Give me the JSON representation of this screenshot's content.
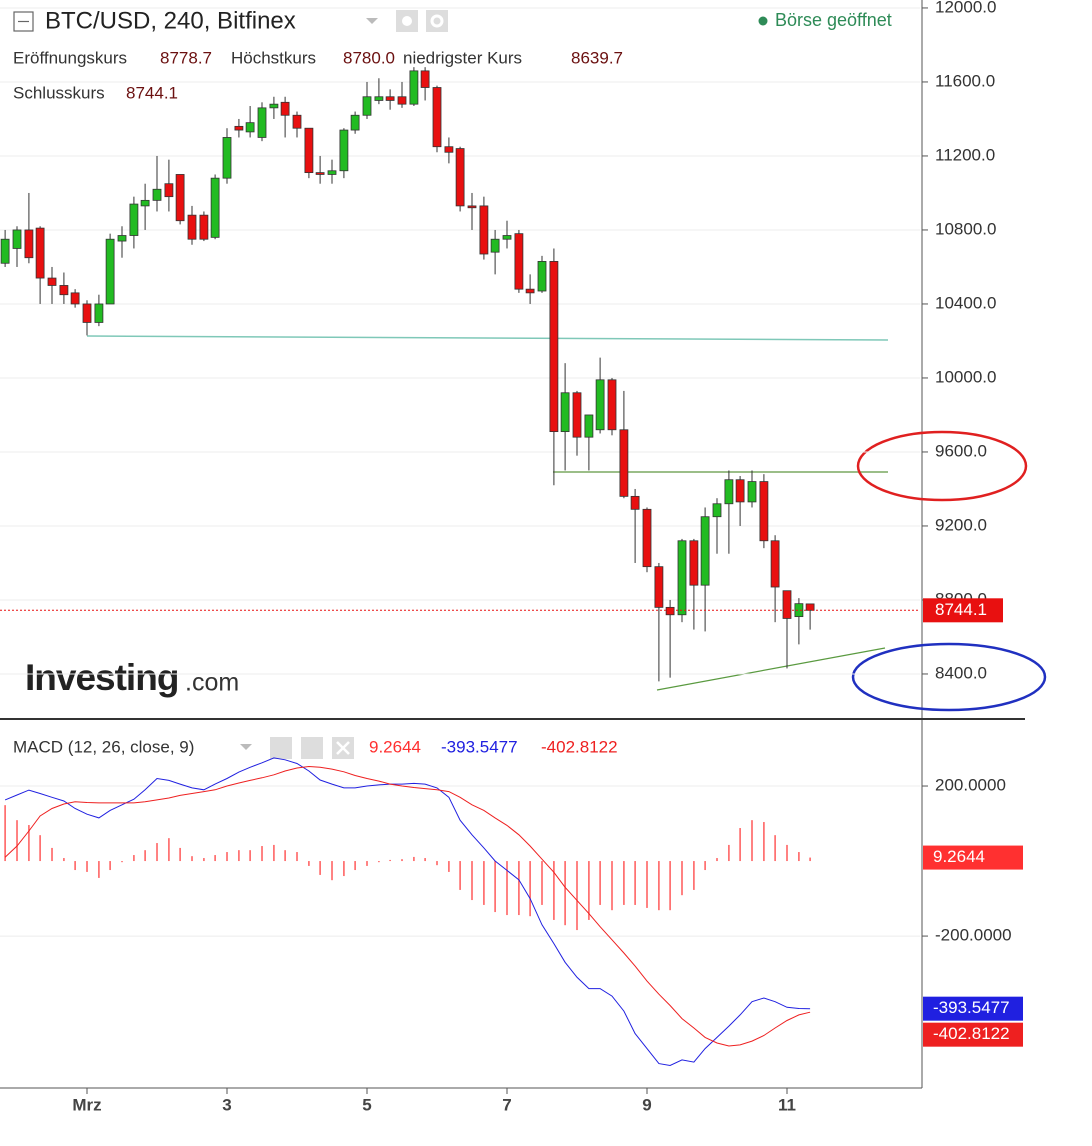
{
  "chart_data": [
    {
      "type": "candlestick",
      "title": "BTC/USD, 240, Bitfinex",
      "status": "Börse geöffnet",
      "ohlc": [
        {
          "label": "Eröffnungskurs",
          "value_label": "8778.7"
        },
        {
          "label": "Höchstkurs",
          "value_label": "8780.0"
        },
        {
          "label": "niedrigster Kurs",
          "value_label": "8639.7"
        },
        {
          "label": "Schlusskurs",
          "value_label": "8744.1"
        }
      ],
      "watermark": "Investing",
      "watermark_suffix": ".com",
      "up_color": "#22bb22",
      "down_color": "#e81010",
      "grid": true,
      "x": [
        -0.17,
        0.0,
        0.17,
        0.33,
        0.5,
        0.67,
        0.83,
        1.0,
        1.17,
        1.33,
        1.5,
        1.67,
        1.83,
        2.0,
        2.17,
        2.33,
        2.5,
        2.67,
        2.83,
        3.0,
        3.17,
        3.33,
        3.5,
        3.67,
        3.83,
        4.0,
        4.17,
        4.33,
        4.5,
        4.67,
        4.83,
        5.0,
        5.17,
        5.33,
        5.5,
        5.67,
        5.83,
        6.0,
        6.17,
        6.33,
        6.5,
        6.67,
        6.83,
        7.0,
        7.17,
        7.33,
        7.5,
        7.67,
        7.83,
        8.0,
        8.17,
        8.33,
        8.5,
        8.67,
        8.83,
        9.0,
        9.17,
        9.33,
        9.5,
        9.67,
        9.83,
        10.0,
        10.17,
        10.33,
        10.5,
        10.67,
        10.83,
        11.0,
        11.17,
        11.33
      ],
      "open": [
        10620,
        10700,
        10800,
        10810,
        10540,
        10500,
        10460,
        10400,
        10300,
        10400,
        10740,
        10770,
        10930,
        10960,
        11050,
        11100,
        10880,
        10880,
        10760,
        11080,
        11360,
        11330,
        11300,
        11460,
        11490,
        11420,
        11350,
        11110,
        11100,
        11120,
        11340,
        11420,
        11500,
        11520,
        11520,
        11480,
        11660,
        11570,
        11250,
        11240,
        10930,
        10930,
        10680,
        10750,
        10780,
        10480,
        10470,
        10630,
        9710,
        9920,
        9680,
        9720,
        9990,
        9720,
        9360,
        9290,
        8980,
        8760,
        8720,
        9120,
        8880,
        9250,
        9320,
        9450,
        9330,
        9440,
        9120,
        8850,
        8710,
        8778.7
      ],
      "high": [
        10800,
        10820,
        11000,
        10820,
        10600,
        10570,
        10480,
        10420,
        10450,
        10780,
        10820,
        10980,
        11050,
        11200,
        11180,
        11100,
        10930,
        10900,
        11100,
        11350,
        11400,
        11470,
        11490,
        11520,
        11520,
        11440,
        11350,
        11200,
        11180,
        11350,
        11440,
        11600,
        11620,
        11560,
        11600,
        11680,
        11680,
        11580,
        11300,
        11250,
        11000,
        10980,
        10800,
        10850,
        10800,
        10560,
        10660,
        10700,
        10080,
        9930,
        9800,
        10110,
        10000,
        9930,
        9400,
        9300,
        9000,
        8800,
        9130,
        9130,
        9300,
        9350,
        9500,
        9470,
        9500,
        9480,
        9150,
        8850,
        8810,
        8780
      ],
      "low": [
        10600,
        10600,
        10620,
        10400,
        10400,
        10400,
        10380,
        10230,
        10280,
        10400,
        10650,
        10700,
        10800,
        10900,
        10900,
        10830,
        10720,
        10740,
        10750,
        11050,
        11300,
        11300,
        11280,
        11400,
        11300,
        11300,
        11080,
        11050,
        11050,
        11080,
        11320,
        11400,
        11480,
        11450,
        11460,
        11470,
        11500,
        11220,
        11160,
        10900,
        10800,
        10640,
        10560,
        10700,
        10460,
        10400,
        10460,
        9420,
        9500,
        9580,
        9500,
        9700,
        9690,
        9350,
        9000,
        8950,
        8360,
        8380,
        8680,
        8640,
        8630,
        9050,
        9050,
        9200,
        9300,
        9080,
        8680,
        8430,
        8560,
        8639.7
      ],
      "close": [
        10750,
        10800,
        10650,
        10540,
        10500,
        10450,
        10400,
        10300,
        10400,
        10750,
        10770,
        10940,
        10960,
        11020,
        10980,
        10850,
        10750,
        10750,
        11080,
        11300,
        11340,
        11380,
        11460,
        11480,
        11420,
        11350,
        11110,
        11100,
        11120,
        11340,
        11420,
        11520,
        11520,
        11500,
        11480,
        11660,
        11570,
        11250,
        11220,
        10930,
        10920,
        10670,
        10750,
        10770,
        10480,
        10460,
        10630,
        9710,
        9920,
        9680,
        9800,
        9990,
        9720,
        9360,
        9290,
        8980,
        8760,
        8720,
        9120,
        8880,
        9250,
        9320,
        9450,
        9330,
        9440,
        9120,
        8870,
        8700,
        8780,
        8744.1
      ],
      "xlim": [
        -0.243,
        12.9
      ],
      "xticks": [
        {
          "value": 1,
          "label": "Mrz"
        },
        3,
        5,
        7,
        9,
        11
      ],
      "ylim": [
        8162,
        12043
      ],
      "yticks": [
        {
          "value": 8400,
          "label": "8400.0"
        },
        {
          "value": 8800,
          "label": "8800.0"
        },
        {
          "value": 9200,
          "label": "9200.0"
        },
        {
          "value": 9600,
          "label": "9600.0"
        },
        {
          "value": 10000,
          "label": "10000.0"
        },
        {
          "value": 10400,
          "label": "10400.0"
        },
        {
          "value": 10800,
          "label": "10800.0"
        },
        {
          "value": 11200,
          "label": "11200.0"
        },
        {
          "value": 11600,
          "label": "11600.0"
        },
        {
          "value": 12000,
          "label": "12000.0"
        }
      ]
    },
    {
      "type": "macd",
      "title": "MACD (12, 26, close, 9)",
      "grid": true,
      "ylim": [
        -605,
        376
      ],
      "yticks": [
        {
          "value": -200,
          "label": "-200.0000"
        },
        {
          "value": 200,
          "label": "200.0000"
        }
      ],
      "series": [
        {
          "style": "histogram",
          "color": "#ff3030",
          "values": [
            149,
            109,
            96,
            69,
            35,
            8,
            -24,
            -29,
            -45,
            -24,
            -3,
            16,
            29,
            48,
            61,
            35,
            13,
            8,
            16,
            24,
            29,
            29,
            40,
            43,
            29,
            24,
            -13,
            -37,
            -51,
            -40,
            -24,
            -13,
            -3,
            3,
            5,
            11,
            8,
            -11,
            -29,
            -77,
            -104,
            -117,
            -136,
            -144,
            -144,
            -147,
            -117,
            -157,
            -171,
            -184,
            -157,
            -117,
            -131,
            -117,
            -117,
            -125,
            -131,
            -131,
            -91,
            -77,
            -24,
            8,
            43,
            88,
            109,
            104,
            69,
            43,
            24,
            9.2644
          ]
        },
        {
          "style": "line",
          "color": "#2020e0",
          "values": [
            163,
            176,
            189,
            180,
            170,
            160,
            140,
            125,
            115,
            135,
            150,
            165,
            190,
            220,
            215,
            205,
            195,
            190,
            205,
            220,
            237,
            250,
            262,
            275,
            270,
            260,
            240,
            216,
            205,
            195,
            195,
            200,
            203,
            205,
            205,
            207,
            205,
            195,
            170,
            109,
            70,
            35,
            0,
            -25,
            -50,
            -100,
            -170,
            -220,
            -270,
            -310,
            -340,
            -340,
            -360,
            -400,
            -460,
            -500,
            -540,
            -545,
            -530,
            -536,
            -500,
            -470,
            -440,
            -410,
            -375,
            -365,
            -375,
            -390,
            -393,
            -393.5477
          ]
        },
        {
          "style": "line",
          "color": "#ee2020",
          "values": [
            10,
            40,
            80,
            120,
            140,
            152,
            158,
            156,
            155,
            155,
            155,
            155,
            158,
            163,
            168,
            175,
            180,
            185,
            190,
            200,
            208,
            215,
            222,
            230,
            240,
            248,
            252,
            250,
            245,
            238,
            228,
            220,
            213,
            205,
            200,
            196,
            193,
            190,
            185,
            170,
            150,
            135,
            115,
            95,
            70,
            40,
            5,
            -30,
            -70,
            -105,
            -140,
            -175,
            -210,
            -245,
            -280,
            -320,
            -355,
            -385,
            -420,
            -445,
            -470,
            -485,
            -493,
            -490,
            -480,
            -465,
            -445,
            -425,
            -410,
            -402.8122
          ]
        }
      ]
    }
  ]
}
